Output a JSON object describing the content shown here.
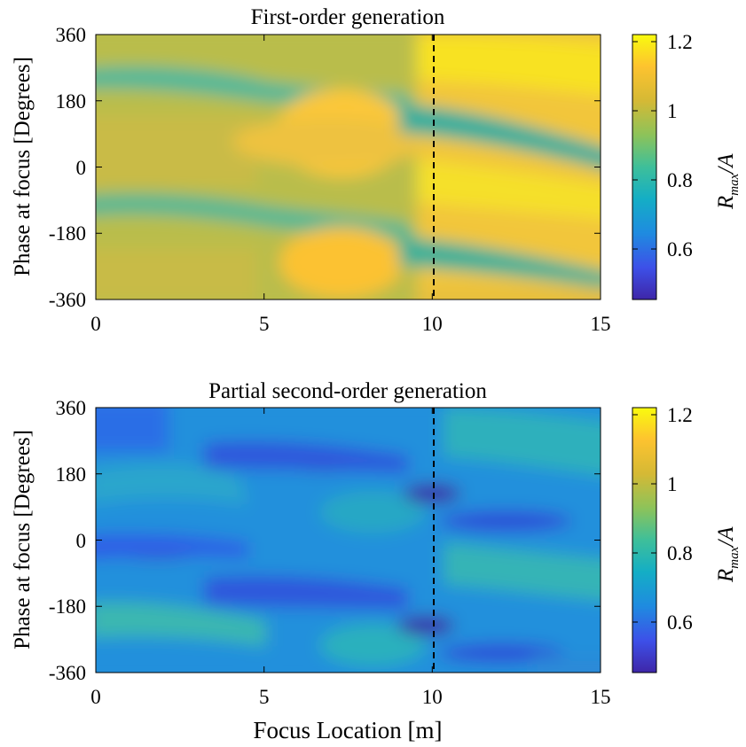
{
  "chart_data": [
    {
      "type": "heatmap",
      "title": "First-order generation",
      "xlabel": "",
      "ylabel": "Phase at focus [Degrees]",
      "xlim": [
        0,
        15
      ],
      "ylim": [
        -360,
        360
      ],
      "xticks": [
        "0",
        "5",
        "10",
        "15"
      ],
      "yticks": [
        "-360",
        "-180",
        "0",
        "180",
        "360"
      ],
      "colorbar": {
        "label_main": "R",
        "label_sub": "max",
        "label_tail": "/A",
        "range": [
          0.45,
          1.22
        ],
        "ticks": [
          "0.6",
          "0.8",
          "1",
          "1.2"
        ]
      },
      "reference_line": {
        "x": 10,
        "style": "dashed"
      }
    },
    {
      "type": "heatmap",
      "title": "Partial second-order generation",
      "xlabel": "Focus Location [m]",
      "ylabel": "Phase at focus [Degrees]",
      "xlim": [
        0,
        15
      ],
      "ylim": [
        -360,
        360
      ],
      "xticks": [
        "0",
        "5",
        "10",
        "15"
      ],
      "yticks": [
        "-360",
        "-180",
        "0",
        "180",
        "360"
      ],
      "colorbar": {
        "label_main": "R",
        "label_sub": "max",
        "label_tail": "/A",
        "range": [
          0.45,
          1.22
        ],
        "ticks": [
          "0.6",
          "0.8",
          "1",
          "1.2"
        ]
      },
      "reference_line": {
        "x": 10,
        "style": "dashed"
      }
    }
  ]
}
